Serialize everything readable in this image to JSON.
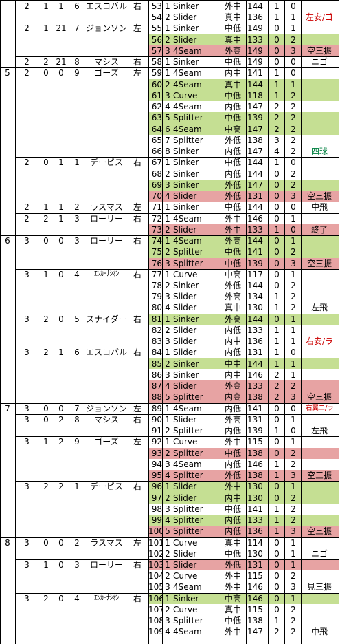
{
  "colors": {
    "green": "#c5df93",
    "red": "#e7a3a3",
    "red_text": "#cc0000",
    "green_text": "#008040"
  },
  "innings": [
    {
      "inning": "",
      "start_row": 0,
      "at_bats": [
        {
          "outs": "2",
          "c2": "1",
          "c3": "1",
          "order": "6",
          "name": "エスコバル",
          "hand": "右",
          "start_row": 0,
          "rows": 2,
          "result": "左安/ゴ",
          "result_color": "red"
        },
        {
          "outs": "2",
          "c2": "1",
          "c3": "21",
          "order": "7",
          "name": "ジョンソン",
          "hand": "左",
          "start_row": 2,
          "rows": 3,
          "result": "空三振",
          "result_color": "black"
        },
        {
          "outs": "2",
          "c2": "2",
          "c3": "21",
          "order": "8",
          "name": "マシス",
          "hand": "右",
          "start_row": 5,
          "rows": 1,
          "result": "ニゴ",
          "result_color": "black"
        }
      ]
    },
    {
      "inning": "5",
      "start_row": 6,
      "at_bats": [
        {
          "outs": "2",
          "c2": "0",
          "c3": "0",
          "order": "9",
          "name": "ゴーズ",
          "hand": "左",
          "start_row": 6,
          "rows": 8,
          "result": "四球",
          "result_color": "green"
        },
        {
          "outs": "2",
          "c2": "0",
          "c3": "1",
          "order": "1",
          "name": "デービス",
          "hand": "右",
          "start_row": 14,
          "rows": 4,
          "result": "空三振",
          "result_color": "black"
        },
        {
          "outs": "2",
          "c2": "1",
          "c3": "1",
          "order": "2",
          "name": "ラスマス",
          "hand": "左",
          "start_row": 18,
          "rows": 1,
          "result": "中飛",
          "result_color": "black"
        },
        {
          "outs": "2",
          "c2": "2",
          "c3": "1",
          "order": "3",
          "name": "ローリー",
          "hand": "右",
          "start_row": 19,
          "rows": 2,
          "result": "終了",
          "result_color": "black"
        }
      ]
    },
    {
      "inning": "6",
      "start_row": 21,
      "at_bats": [
        {
          "outs": "3",
          "c2": "0",
          "c3": "0",
          "order": "3",
          "name": "ローリー",
          "hand": "右",
          "start_row": 21,
          "rows": 3,
          "result": "空三振",
          "result_color": "black"
        },
        {
          "outs": "3",
          "c2": "1",
          "c3": "0",
          "order": "4",
          "name": "ｴﾝｶｰﾅｼｵﾝ",
          "hand": "右",
          "start_row": 24,
          "rows": 4,
          "result": "左飛",
          "result_color": "black"
        },
        {
          "outs": "3",
          "c2": "2",
          "c3": "0",
          "order": "5",
          "name": "スナイダー",
          "hand": "右",
          "start_row": 28,
          "rows": 3,
          "result": "右安/ラ",
          "result_color": "red"
        },
        {
          "outs": "3",
          "c2": "2",
          "c3": "1",
          "order": "6",
          "name": "エスコバル",
          "hand": "右",
          "start_row": 31,
          "rows": 5,
          "result": "空三振",
          "result_color": "black"
        }
      ]
    },
    {
      "inning": "7",
      "start_row": 36,
      "at_bats": [
        {
          "outs": "3",
          "c2": "0",
          "c3": "0",
          "order": "7",
          "name": "ジョンソン",
          "hand": "左",
          "start_row": 36,
          "rows": 1,
          "result": "右翼ニ/ラ",
          "result_color": "red"
        },
        {
          "outs": "3",
          "c2": "0",
          "c3": "2",
          "order": "8",
          "name": "マシス",
          "hand": "右",
          "start_row": 37,
          "rows": 2,
          "result": "左飛",
          "result_color": "black"
        },
        {
          "outs": "3",
          "c2": "1",
          "c3": "2",
          "order": "9",
          "name": "ゴーズ",
          "hand": "左",
          "start_row": 39,
          "rows": 4,
          "result": "空三振",
          "result_color": "black"
        },
        {
          "outs": "3",
          "c2": "2",
          "c3": "2",
          "order": "1",
          "name": "デービス",
          "hand": "右",
          "start_row": 43,
          "rows": 5,
          "result": "空三振",
          "result_color": "black"
        }
      ]
    },
    {
      "inning": "8",
      "start_row": 48,
      "at_bats": [
        {
          "outs": "3",
          "c2": "0",
          "c3": "0",
          "order": "2",
          "name": "ラスマス",
          "hand": "左",
          "start_row": 48,
          "rows": 2,
          "result": "ニゴ",
          "result_color": "black"
        },
        {
          "outs": "3",
          "c2": "1",
          "c3": "0",
          "order": "3",
          "name": "ローリー",
          "hand": "右",
          "start_row": 50,
          "rows": 3,
          "result": "見三振",
          "result_color": "black"
        },
        {
          "outs": "3",
          "c2": "2",
          "c3": "0",
          "order": "4",
          "name": "ｴﾝｶｰﾅｼｵﾝ",
          "hand": "右",
          "start_row": 53,
          "rows": 4,
          "result": "中飛",
          "result_color": "black"
        }
      ]
    }
  ],
  "pitches": [
    {
      "n": "53",
      "k": "1",
      "type": "Sinker",
      "loc": "外中",
      "speed": "144",
      "b": "1",
      "s": "0",
      "hl": ""
    },
    {
      "n": "54",
      "k": "2",
      "type": "Slider",
      "loc": "真中",
      "speed": "136",
      "b": "1",
      "s": "1",
      "hl": ""
    },
    {
      "n": "55",
      "k": "1",
      "type": "Sinker",
      "loc": "中低",
      "speed": "149",
      "b": "0",
      "s": "1",
      "hl": ""
    },
    {
      "n": "56",
      "k": "2",
      "type": "Slider",
      "loc": "真中",
      "speed": "133",
      "b": "0",
      "s": "2",
      "hl": "g"
    },
    {
      "n": "57",
      "k": "3",
      "type": "4Seam",
      "loc": "外高",
      "speed": "149",
      "b": "0",
      "s": "3",
      "hl": "r"
    },
    {
      "n": "58",
      "k": "1",
      "type": "Sinker",
      "loc": "中低",
      "speed": "149",
      "b": "0",
      "s": "0",
      "hl": ""
    },
    {
      "n": "59",
      "k": "1",
      "type": "4Seam",
      "loc": "内中",
      "speed": "141",
      "b": "1",
      "s": "0",
      "hl": ""
    },
    {
      "n": "60",
      "k": "2",
      "type": "4Seam",
      "loc": "真中",
      "speed": "144",
      "b": "1",
      "s": "1",
      "hl": "g"
    },
    {
      "n": "61",
      "k": "3",
      "type": "Curve",
      "loc": "中低",
      "speed": "118",
      "b": "1",
      "s": "2",
      "hl": "g"
    },
    {
      "n": "62",
      "k": "4",
      "type": "4Seam",
      "loc": "内低",
      "speed": "147",
      "b": "2",
      "s": "2",
      "hl": ""
    },
    {
      "n": "63",
      "k": "5",
      "type": "Splitter",
      "loc": "中低",
      "speed": "139",
      "b": "2",
      "s": "2",
      "hl": "g"
    },
    {
      "n": "64",
      "k": "6",
      "type": "4Seam",
      "loc": "中高",
      "speed": "147",
      "b": "2",
      "s": "2",
      "hl": "g"
    },
    {
      "n": "65",
      "k": "7",
      "type": "Splitter",
      "loc": "外低",
      "speed": "138",
      "b": "3",
      "s": "2",
      "hl": ""
    },
    {
      "n": "66",
      "k": "8",
      "type": "Sinker",
      "loc": "内低",
      "speed": "147",
      "b": "4",
      "s": "2",
      "hl": ""
    },
    {
      "n": "67",
      "k": "1",
      "type": "Sinker",
      "loc": "中低",
      "speed": "144",
      "b": "1",
      "s": "0",
      "hl": ""
    },
    {
      "n": "68",
      "k": "2",
      "type": "Sinker",
      "loc": "内低",
      "speed": "144",
      "b": "0",
      "s": "2",
      "hl": ""
    },
    {
      "n": "69",
      "k": "3",
      "type": "Sinker",
      "loc": "外低",
      "speed": "147",
      "b": "0",
      "s": "2",
      "hl": "g"
    },
    {
      "n": "70",
      "k": "4",
      "type": "Slider",
      "loc": "外低",
      "speed": "131",
      "b": "0",
      "s": "3",
      "hl": "r"
    },
    {
      "n": "71",
      "k": "1",
      "type": "Sinker",
      "loc": "中低",
      "speed": "144",
      "b": "0",
      "s": "0",
      "hl": ""
    },
    {
      "n": "72",
      "k": "1",
      "type": "4Seam",
      "loc": "外中",
      "speed": "146",
      "b": "0",
      "s": "1",
      "hl": ""
    },
    {
      "n": "73",
      "k": "2",
      "type": "Slider",
      "loc": "外中",
      "speed": "133",
      "b": "1",
      "s": "0",
      "hl": "r"
    },
    {
      "n": "74",
      "k": "1",
      "type": "4Seam",
      "loc": "外高",
      "speed": "144",
      "b": "0",
      "s": "1",
      "hl": "g"
    },
    {
      "n": "75",
      "k": "2",
      "type": "Splitter",
      "loc": "中低",
      "speed": "141",
      "b": "0",
      "s": "2",
      "hl": "g"
    },
    {
      "n": "76",
      "k": "3",
      "type": "Splitter",
      "loc": "中低",
      "speed": "139",
      "b": "0",
      "s": "3",
      "hl": "r"
    },
    {
      "n": "77",
      "k": "1",
      "type": "Curve",
      "loc": "中高",
      "speed": "117",
      "b": "0",
      "s": "1",
      "hl": ""
    },
    {
      "n": "78",
      "k": "2",
      "type": "Sinker",
      "loc": "外低",
      "speed": "144",
      "b": "0",
      "s": "2",
      "hl": ""
    },
    {
      "n": "79",
      "k": "3",
      "type": "Slider",
      "loc": "外高",
      "speed": "134",
      "b": "1",
      "s": "2",
      "hl": ""
    },
    {
      "n": "80",
      "k": "4",
      "type": "Slider",
      "loc": "真中",
      "speed": "130",
      "b": "1",
      "s": "2",
      "hl": ""
    },
    {
      "n": "81",
      "k": "1",
      "type": "Sinker",
      "loc": "外高",
      "speed": "144",
      "b": "0",
      "s": "1",
      "hl": "g"
    },
    {
      "n": "82",
      "k": "2",
      "type": "Slider",
      "loc": "内低",
      "speed": "133",
      "b": "1",
      "s": "1",
      "hl": ""
    },
    {
      "n": "83",
      "k": "3",
      "type": "Slider",
      "loc": "内中",
      "speed": "136",
      "b": "1",
      "s": "1",
      "hl": ""
    },
    {
      "n": "84",
      "k": "1",
      "type": "Slider",
      "loc": "内低",
      "speed": "131",
      "b": "1",
      "s": "0",
      "hl": ""
    },
    {
      "n": "85",
      "k": "2",
      "type": "Sinker",
      "loc": "中中",
      "speed": "144",
      "b": "1",
      "s": "1",
      "hl": "g"
    },
    {
      "n": "86",
      "k": "3",
      "type": "Sinker",
      "loc": "内中",
      "speed": "146",
      "b": "2",
      "s": "1",
      "hl": ""
    },
    {
      "n": "87",
      "k": "4",
      "type": "Slider",
      "loc": "外高",
      "speed": "133",
      "b": "2",
      "s": "2",
      "hl": "r"
    },
    {
      "n": "88",
      "k": "5",
      "type": "Splitter",
      "loc": "内高",
      "speed": "138",
      "b": "2",
      "s": "3",
      "hl": "r"
    },
    {
      "n": "89",
      "k": "1",
      "type": "4Seam",
      "loc": "内低",
      "speed": "141",
      "b": "0",
      "s": "0",
      "hl": ""
    },
    {
      "n": "90",
      "k": "1",
      "type": "Slider",
      "loc": "外高",
      "speed": "131",
      "b": "0",
      "s": "1",
      "hl": ""
    },
    {
      "n": "91",
      "k": "2",
      "type": "Splitter",
      "loc": "内低",
      "speed": "139",
      "b": "1",
      "s": "0",
      "hl": ""
    },
    {
      "n": "92",
      "k": "1",
      "type": "Curve",
      "loc": "外中",
      "speed": "115",
      "b": "0",
      "s": "1",
      "hl": ""
    },
    {
      "n": "93",
      "k": "2",
      "type": "Splitter",
      "loc": "中低",
      "speed": "138",
      "b": "0",
      "s": "2",
      "hl": "r"
    },
    {
      "n": "94",
      "k": "3",
      "type": "4Seam",
      "loc": "内低",
      "speed": "146",
      "b": "1",
      "s": "2",
      "hl": ""
    },
    {
      "n": "95",
      "k": "4",
      "type": "Splitter",
      "loc": "外低",
      "speed": "138",
      "b": "1",
      "s": "3",
      "hl": "r"
    },
    {
      "n": "96",
      "k": "1",
      "type": "Slider",
      "loc": "外中",
      "speed": "130",
      "b": "0",
      "s": "1",
      "hl": "g"
    },
    {
      "n": "97",
      "k": "2",
      "type": "Slider",
      "loc": "内中",
      "speed": "130",
      "b": "0",
      "s": "2",
      "hl": "g"
    },
    {
      "n": "98",
      "k": "3",
      "type": "Splitter",
      "loc": "中低",
      "speed": "141",
      "b": "1",
      "s": "2",
      "hl": ""
    },
    {
      "n": "99",
      "k": "4",
      "type": "Splitter",
      "loc": "内低",
      "speed": "133",
      "b": "1",
      "s": "2",
      "hl": "g"
    },
    {
      "n": "100",
      "k": "5",
      "type": "Splitter",
      "loc": "内低",
      "speed": "136",
      "b": "1",
      "s": "3",
      "hl": "r"
    },
    {
      "n": "101",
      "k": "1",
      "type": "Curve",
      "loc": "真中",
      "speed": "114",
      "b": "0",
      "s": "1",
      "hl": ""
    },
    {
      "n": "102",
      "k": "2",
      "type": "Slider",
      "loc": "中低",
      "speed": "130",
      "b": "0",
      "s": "1",
      "hl": ""
    },
    {
      "n": "103",
      "k": "1",
      "type": "Slider",
      "loc": "外低",
      "speed": "131",
      "b": "0",
      "s": "1",
      "hl": "r"
    },
    {
      "n": "104",
      "k": "2",
      "type": "Curve",
      "loc": "外中",
      "speed": "115",
      "b": "0",
      "s": "2",
      "hl": ""
    },
    {
      "n": "105",
      "k": "3",
      "type": "4Seam",
      "loc": "外中",
      "speed": "146",
      "b": "0",
      "s": "3",
      "hl": ""
    },
    {
      "n": "106",
      "k": "1",
      "type": "Sinker",
      "loc": "中高",
      "speed": "146",
      "b": "0",
      "s": "1",
      "hl": "g"
    },
    {
      "n": "107",
      "k": "2",
      "type": "Curve",
      "loc": "真中",
      "speed": "115",
      "b": "0",
      "s": "2",
      "hl": ""
    },
    {
      "n": "108",
      "k": "3",
      "type": "Splitter",
      "loc": "中低",
      "speed": "138",
      "b": "1",
      "s": "2",
      "hl": ""
    },
    {
      "n": "109",
      "k": "4",
      "type": "4Seam",
      "loc": "外中",
      "speed": "147",
      "b": "2",
      "s": "2",
      "hl": ""
    }
  ]
}
